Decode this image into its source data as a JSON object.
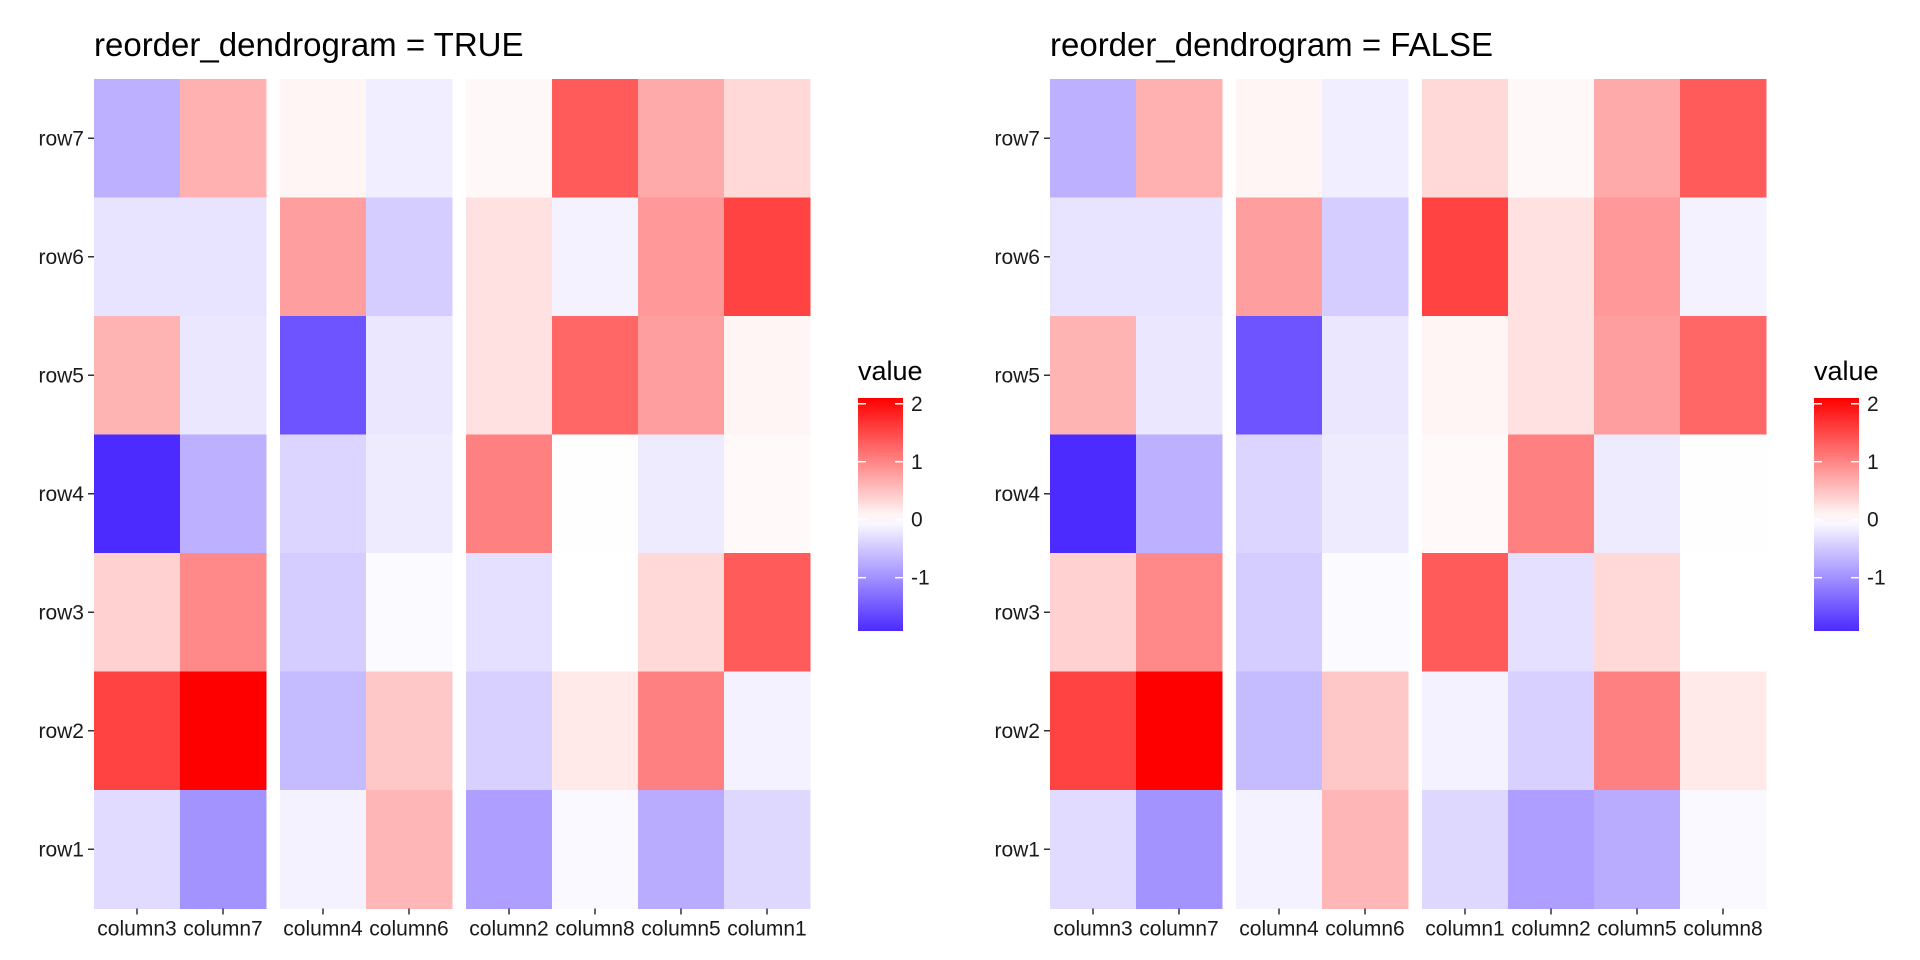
{
  "colors": {
    "low": "#4B2BFF",
    "mid": "#FFFFFF",
    "high": "#FF0000"
  },
  "chart_data": [
    {
      "type": "heatmap",
      "title": "reorder_dendrogram = TRUE",
      "row_labels": [
        "row7",
        "row6",
        "row5",
        "row4",
        "row3",
        "row2",
        "row1"
      ],
      "column_groups": [
        [
          "column3",
          "column7"
        ],
        [
          "column4",
          "column6"
        ],
        [
          "column2",
          "column8",
          "column5",
          "column1"
        ]
      ],
      "values": [
        [
          -0.72,
          0.65,
          0.08,
          -0.15,
          0.06,
          1.35,
          0.7,
          0.32
        ],
        [
          -0.25,
          -0.25,
          0.8,
          -0.45,
          0.25,
          -0.12,
          0.85,
          1.55
        ],
        [
          0.62,
          -0.22,
          -1.55,
          -0.22,
          0.25,
          1.25,
          0.8,
          0.08
        ],
        [
          -1.92,
          -0.72,
          -0.38,
          -0.18,
          1.05,
          0.01,
          -0.18,
          0.05
        ],
        [
          0.38,
          0.98,
          -0.45,
          -0.04,
          -0.28,
          0.0,
          0.32,
          1.35
        ],
        [
          1.55,
          2.1,
          -0.62,
          0.45,
          -0.42,
          0.18,
          1.05,
          -0.12
        ],
        [
          -0.32,
          -0.98,
          -0.12,
          0.6,
          -0.88,
          -0.05,
          -0.75,
          -0.35
        ]
      ],
      "legend": {
        "title": "value",
        "ticks": [
          2,
          1,
          0,
          -1
        ],
        "min": -1.92,
        "max": 2.1
      }
    },
    {
      "type": "heatmap",
      "title": "reorder_dendrogram = FALSE",
      "row_labels": [
        "row7",
        "row6",
        "row5",
        "row4",
        "row3",
        "row2",
        "row1"
      ],
      "column_groups": [
        [
          "column3",
          "column7"
        ],
        [
          "column4",
          "column6"
        ],
        [
          "column1",
          "column2",
          "column5",
          "column8"
        ]
      ],
      "values": [
        [
          -0.72,
          0.65,
          0.08,
          -0.15,
          0.32,
          0.06,
          0.7,
          1.35
        ],
        [
          -0.25,
          -0.25,
          0.8,
          -0.45,
          1.55,
          0.25,
          0.85,
          -0.12
        ],
        [
          0.62,
          -0.22,
          -1.55,
          -0.22,
          0.08,
          0.25,
          0.8,
          1.25
        ],
        [
          -1.92,
          -0.72,
          -0.38,
          -0.18,
          0.05,
          1.05,
          -0.18,
          0.01
        ],
        [
          0.38,
          0.98,
          -0.45,
          -0.04,
          1.35,
          -0.28,
          0.32,
          0.0
        ],
        [
          1.55,
          2.1,
          -0.62,
          0.45,
          -0.12,
          -0.42,
          1.05,
          0.18
        ],
        [
          -0.32,
          -0.98,
          -0.12,
          0.6,
          -0.35,
          -0.88,
          -0.75,
          -0.05
        ]
      ],
      "legend": {
        "title": "value",
        "ticks": [
          2,
          1,
          0,
          -1
        ],
        "min": -1.92,
        "max": 2.1
      }
    }
  ]
}
